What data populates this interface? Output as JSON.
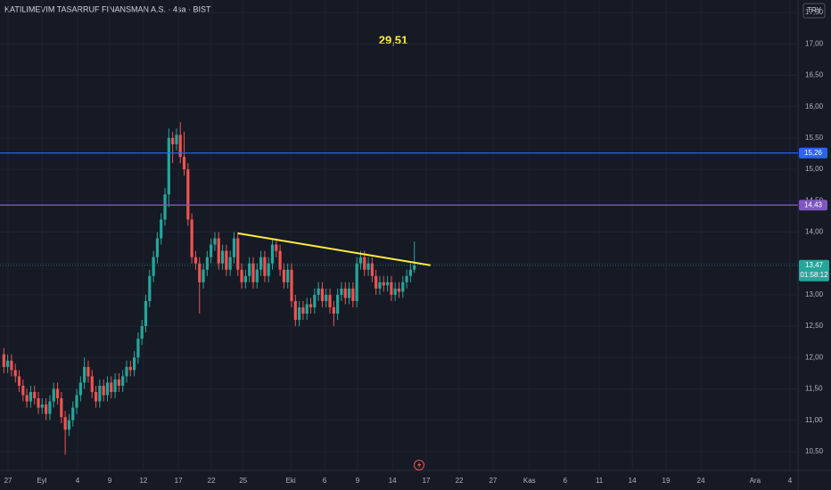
{
  "chart_data": {
    "type": "candlestick",
    "title": "KATILIMEVIM TASARRUF FINANSMAN A.S. · 4sa · BIST",
    "currency": "TRY",
    "annotation": {
      "text": "29,51",
      "color": "#ffeb3b"
    },
    "up_color": "#26a69a",
    "down_color": "#ef5350",
    "grid": true,
    "xlim": [
      -1,
      207
    ],
    "xticks": [
      {
        "value": 1.1,
        "label": "27"
      },
      {
        "value": 9.9,
        "label": "Eyl"
      },
      {
        "value": 19.2,
        "label": "4"
      },
      {
        "value": 27.6,
        "label": "9"
      },
      {
        "value": 36.4,
        "label": "12"
      },
      {
        "value": 45.5,
        "label": "17"
      },
      {
        "value": 54.1,
        "label": "22"
      },
      {
        "value": 62.4,
        "label": "25"
      },
      {
        "value": 74.8,
        "label": "Eki"
      },
      {
        "value": 83.6,
        "label": "6"
      },
      {
        "value": 92.2,
        "label": "9"
      },
      {
        "value": 101.3,
        "label": "14"
      },
      {
        "value": 110.1,
        "label": "17"
      },
      {
        "value": 118.7,
        "label": "22"
      },
      {
        "value": 127.5,
        "label": "27"
      },
      {
        "value": 137.0,
        "label": "Kas"
      },
      {
        "value": 146.3,
        "label": "6"
      },
      {
        "value": 155.2,
        "label": "11"
      },
      {
        "value": 163.8,
        "label": "14"
      },
      {
        "value": 172.6,
        "label": "19"
      },
      {
        "value": 181.7,
        "label": "24"
      },
      {
        "value": 195.8,
        "label": "Ara"
      },
      {
        "value": 204.9,
        "label": "4"
      }
    ],
    "ylim": [
      10.2,
      17.7
    ],
    "yticks": [
      {
        "value": 17.5,
        "label": "17,50"
      },
      {
        "value": 17,
        "label": "17,00"
      },
      {
        "value": 16.5,
        "label": "16,50"
      },
      {
        "value": 16,
        "label": "16,00"
      },
      {
        "value": 15.5,
        "label": "15,50"
      },
      {
        "value": 15,
        "label": "15,00"
      },
      {
        "value": 14.5,
        "label": "14,50"
      },
      {
        "value": 14,
        "label": "14,00"
      },
      {
        "value": 13.5,
        "label": "13,50"
      },
      {
        "value": 13,
        "label": "13,00"
      },
      {
        "value": 12.5,
        "label": "12,50"
      },
      {
        "value": 12,
        "label": "12,00"
      },
      {
        "value": 11.5,
        "label": "11,50"
      },
      {
        "value": 11,
        "label": "11,00"
      },
      {
        "value": 10.5,
        "label": "10,50"
      }
    ],
    "open": [
      12.05,
      11.85,
      11.95,
      11.8,
      11.7,
      11.55,
      11.4,
      11.3,
      11.45,
      11.35,
      11.2,
      11.25,
      11.1,
      11.3,
      11.5,
      11.35,
      11.05,
      10.85,
      11.0,
      11.2,
      11.4,
      11.6,
      11.85,
      11.7,
      11.45,
      11.3,
      11.55,
      11.4,
      11.6,
      11.45,
      11.65,
      11.55,
      11.7,
      11.85,
      11.8,
      12.0,
      12.3,
      12.5,
      12.9,
      13.3,
      13.6,
      13.9,
      14.2,
      14.6,
      15.5,
      15.4,
      15.55,
      15.2,
      15.0,
      14.2,
      13.6,
      13.5,
      13.2,
      13.4,
      13.6,
      13.8,
      13.9,
      13.5,
      13.7,
      13.4,
      13.6,
      13.9,
      13.4,
      13.2,
      13.3,
      13.5,
      13.2,
      13.4,
      13.6,
      13.3,
      13.5,
      13.8,
      13.7,
      13.4,
      13.2,
      13.4,
      12.9,
      12.6,
      12.8,
      12.7,
      12.85,
      12.8,
      13.0,
      13.1,
      12.9,
      13.0,
      12.8,
      12.7,
      13.0,
      13.1,
      12.95,
      13.1,
      12.9,
      13.5,
      13.6,
      13.4,
      13.5,
      13.3,
      13.1,
      13.2,
      13.15,
      13.2,
      13.0,
      13.1,
      13.05,
      13.2,
      13.3,
      13.4
    ],
    "high": [
      12.15,
      12.05,
      12.05,
      11.9,
      11.8,
      11.65,
      11.5,
      11.55,
      11.55,
      11.45,
      11.35,
      11.35,
      11.4,
      11.6,
      11.6,
      11.45,
      11.15,
      11.1,
      11.3,
      11.5,
      11.7,
      12.0,
      11.95,
      11.8,
      11.55,
      11.65,
      11.65,
      11.7,
      11.7,
      11.75,
      11.75,
      11.8,
      11.95,
      11.95,
      12.1,
      12.4,
      12.6,
      13.0,
      13.4,
      13.7,
      14.0,
      14.3,
      14.7,
      15.65,
      15.6,
      15.65,
      15.75,
      15.6,
      15.1,
      14.3,
      13.7,
      13.6,
      13.5,
      13.7,
      13.9,
      14.0,
      14.0,
      13.8,
      13.8,
      13.7,
      14.0,
      14.0,
      13.5,
      13.4,
      13.6,
      13.6,
      13.5,
      13.7,
      13.7,
      13.6,
      13.9,
      13.9,
      13.8,
      13.5,
      13.5,
      13.5,
      13.0,
      12.9,
      12.9,
      12.95,
      12.95,
      13.1,
      13.2,
      13.2,
      13.1,
      13.1,
      12.9,
      13.1,
      13.2,
      13.2,
      13.2,
      13.2,
      13.6,
      13.7,
      13.7,
      13.6,
      13.6,
      13.4,
      13.3,
      13.3,
      13.3,
      13.3,
      13.2,
      13.2,
      13.3,
      13.4,
      13.5,
      13.85
    ],
    "low": [
      11.75,
      11.75,
      11.7,
      11.6,
      11.45,
      11.3,
      11.2,
      11.2,
      11.25,
      11.1,
      11.1,
      11.0,
      11.0,
      11.2,
      11.25,
      10.95,
      10.45,
      10.75,
      10.9,
      11.1,
      11.3,
      11.5,
      11.6,
      11.35,
      11.2,
      11.2,
      11.3,
      11.3,
      11.35,
      11.35,
      11.45,
      11.45,
      11.6,
      11.7,
      11.7,
      11.9,
      12.2,
      12.4,
      12.8,
      13.2,
      13.5,
      13.8,
      14.1,
      14.4,
      15.1,
      15.3,
      15.1,
      14.9,
      14.1,
      13.5,
      13.4,
      12.7,
      13.1,
      13.3,
      13.5,
      13.7,
      13.4,
      13.4,
      13.3,
      13.3,
      13.5,
      13.3,
      13.1,
      13.1,
      13.2,
      13.1,
      13.1,
      13.3,
      13.2,
      13.2,
      13.4,
      13.6,
      13.3,
      13.1,
      13.1,
      12.8,
      12.5,
      12.5,
      12.6,
      12.6,
      12.7,
      12.7,
      12.9,
      12.8,
      12.8,
      12.7,
      12.5,
      12.6,
      12.9,
      12.85,
      12.85,
      12.8,
      12.8,
      13.4,
      13.3,
      13.3,
      13.2,
      13.0,
      13.0,
      13.05,
      13.05,
      12.9,
      12.9,
      12.95,
      12.95,
      13.1,
      13.2,
      13.35
    ],
    "close": [
      11.85,
      11.95,
      11.8,
      11.7,
      11.55,
      11.4,
      11.3,
      11.45,
      11.35,
      11.2,
      11.25,
      11.1,
      11.3,
      11.5,
      11.35,
      11.05,
      10.85,
      11.0,
      11.2,
      11.4,
      11.6,
      11.85,
      11.7,
      11.45,
      11.3,
      11.55,
      11.4,
      11.6,
      11.45,
      11.65,
      11.55,
      11.7,
      11.85,
      11.8,
      12.0,
      12.3,
      12.5,
      12.9,
      13.3,
      13.6,
      13.9,
      14.2,
      14.6,
      15.5,
      15.4,
      15.55,
      15.2,
      15.0,
      14.2,
      13.6,
      13.5,
      13.2,
      13.4,
      13.6,
      13.8,
      13.9,
      13.5,
      13.7,
      13.4,
      13.6,
      13.9,
      13.4,
      13.2,
      13.3,
      13.5,
      13.2,
      13.4,
      13.6,
      13.3,
      13.5,
      13.8,
      13.7,
      13.4,
      13.2,
      13.4,
      12.9,
      12.6,
      12.8,
      12.7,
      12.85,
      12.8,
      13.0,
      13.1,
      12.9,
      13.0,
      12.8,
      12.7,
      13.0,
      13.1,
      12.95,
      13.1,
      12.9,
      13.5,
      13.6,
      13.4,
      13.5,
      13.3,
      13.1,
      13.2,
      13.15,
      13.2,
      13.0,
      13.1,
      13.05,
      13.2,
      13.3,
      13.4,
      13.47
    ],
    "levels": [
      {
        "value": 15.26,
        "label": "15,26",
        "color": "#2962ff"
      },
      {
        "value": 14.43,
        "label": "14,43",
        "color": "#7e57c2"
      }
    ],
    "last": {
      "value": 13.47,
      "label": "13,47",
      "countdown": "01:58:12",
      "color": "#26a69a"
    },
    "trendline": {
      "x": [
        61,
        111.2
      ],
      "y": [
        13.98,
        13.47
      ],
      "color": "#ffeb3b"
    }
  }
}
